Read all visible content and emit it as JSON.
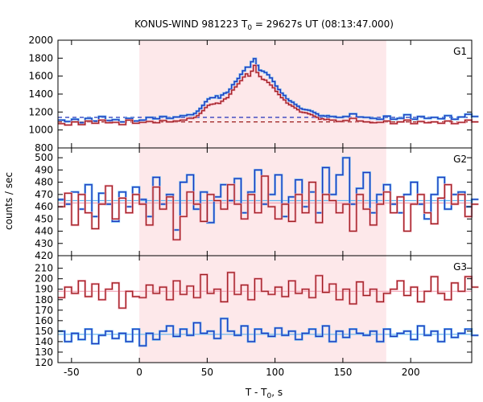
{
  "chart_data": {
    "type": "line",
    "title": {
      "prefix": "KONUS-WIND 981223 T",
      "sub": "0",
      "suffix": " = 29627s UT (08:13:47.000)"
    },
    "xlabel": {
      "prefix": "T - T",
      "sub": "0",
      "suffix": ", s"
    },
    "ylabel": "counts / sec",
    "xlim": [
      -60,
      245
    ],
    "xticks": [
      -50,
      0,
      50,
      100,
      150,
      200
    ],
    "shaded_interval": [
      0,
      182
    ],
    "shade_color": "#fde8ea",
    "colors": {
      "blue": "#2233bb",
      "red": "#9b1c1c",
      "light_blue": "#5fb4f0",
      "pink": "#f2a2b4"
    },
    "panels": [
      {
        "label": "G1",
        "ylim": [
          800,
          2000
        ],
        "yticks": [
          1000,
          1200,
          1400,
          1600,
          1800,
          2000
        ],
        "background_levels": [
          {
            "series": "blue",
            "value": 1140
          },
          {
            "series": "red",
            "value": 1090
          }
        ],
        "series": [
          {
            "color": "blue",
            "outline": "light_blue",
            "x": [
              -60,
              -55,
              -50,
              -45,
              -40,
              -35,
              -30,
              -25,
              -20,
              -15,
              -10,
              -5,
              0,
              5,
              10,
              15,
              20,
              25,
              30,
              35,
              40,
              42,
              44,
              46,
              48,
              50,
              52,
              54,
              56,
              58,
              60,
              62,
              64,
              66,
              68,
              70,
              72,
              74,
              76,
              78,
              80,
              82,
              84,
              86,
              88,
              90,
              92,
              94,
              96,
              98,
              100,
              102,
              104,
              106,
              108,
              110,
              112,
              114,
              116,
              118,
              120,
              122,
              124,
              126,
              128,
              130,
              132,
              134,
              136,
              138,
              140,
              145,
              150,
              155,
              160,
              165,
              170,
              175,
              180,
              185,
              190,
              195,
              200,
              205,
              210,
              215,
              220,
              225,
              230,
              235,
              240,
              245
            ],
            "y": [
              1110,
              1095,
              1120,
              1080,
              1130,
              1100,
              1150,
              1105,
              1115,
              1090,
              1130,
              1100,
              1110,
              1140,
              1125,
              1150,
              1130,
              1145,
              1160,
              1170,
              1185,
              1210,
              1240,
              1275,
              1315,
              1345,
              1360,
              1360,
              1380,
              1355,
              1390,
              1410,
              1420,
              1455,
              1505,
              1540,
              1575,
              1620,
              1660,
              1700,
              1700,
              1760,
              1795,
              1720,
              1665,
              1655,
              1640,
              1615,
              1580,
              1540,
              1490,
              1450,
              1410,
              1385,
              1345,
              1325,
              1310,
              1285,
              1265,
              1240,
              1230,
              1225,
              1220,
              1210,
              1195,
              1180,
              1160,
              1160,
              1155,
              1160,
              1150,
              1140,
              1150,
              1180,
              1145,
              1140,
              1130,
              1120,
              1155,
              1120,
              1130,
              1170,
              1120,
              1150,
              1130,
              1140,
              1125,
              1160,
              1120,
              1145,
              1175,
              1150
            ]
          },
          {
            "color": "red",
            "outline": "pink",
            "x": [
              -60,
              -55,
              -50,
              -45,
              -40,
              -35,
              -30,
              -25,
              -20,
              -15,
              -10,
              -5,
              0,
              5,
              10,
              15,
              20,
              25,
              30,
              35,
              40,
              42,
              44,
              46,
              48,
              50,
              52,
              54,
              56,
              58,
              60,
              62,
              64,
              66,
              68,
              70,
              72,
              74,
              76,
              78,
              80,
              82,
              84,
              86,
              88,
              90,
              92,
              94,
              96,
              98,
              100,
              102,
              104,
              106,
              108,
              110,
              112,
              114,
              116,
              118,
              120,
              122,
              124,
              126,
              128,
              130,
              132,
              134,
              136,
              138,
              140,
              145,
              150,
              155,
              160,
              165,
              170,
              175,
              180,
              185,
              190,
              195,
              200,
              205,
              210,
              215,
              220,
              225,
              230,
              235,
              240,
              245
            ],
            "y": [
              1070,
              1055,
              1090,
              1060,
              1100,
              1075,
              1110,
              1080,
              1085,
              1060,
              1110,
              1075,
              1085,
              1095,
              1080,
              1105,
              1090,
              1100,
              1110,
              1130,
              1140,
              1160,
              1185,
              1215,
              1250,
              1275,
              1285,
              1290,
              1300,
              1295,
              1320,
              1345,
              1360,
              1400,
              1445,
              1480,
              1515,
              1550,
              1590,
              1625,
              1600,
              1655,
              1720,
              1640,
              1595,
              1565,
              1555,
              1530,
              1500,
              1470,
              1430,
              1395,
              1360,
              1335,
              1300,
              1280,
              1265,
              1245,
              1225,
              1200,
              1195,
              1190,
              1180,
              1170,
              1155,
              1140,
              1120,
              1125,
              1115,
              1120,
              1110,
              1095,
              1105,
              1130,
              1100,
              1090,
              1080,
              1085,
              1100,
              1070,
              1090,
              1110,
              1070,
              1095,
              1080,
              1090,
              1075,
              1100,
              1070,
              1085,
              1110,
              1090
            ]
          }
        ]
      },
      {
        "label": "G2",
        "ylim": [
          420,
          508
        ],
        "yticks": [
          420,
          430,
          440,
          450,
          460,
          470,
          480,
          490,
          500
        ],
        "background_levels": [
          {
            "series": "blue",
            "value": 465
          },
          {
            "series": "red",
            "value": 463
          }
        ],
        "series": [
          {
            "color": "blue",
            "outline": "light_blue",
            "x": [
              -60,
              -55,
              -50,
              -45,
              -40,
              -35,
              -30,
              -25,
              -20,
              -15,
              -10,
              -5,
              0,
              5,
              10,
              15,
              20,
              25,
              30,
              35,
              40,
              45,
              50,
              55,
              60,
              65,
              70,
              75,
              80,
              85,
              90,
              95,
              100,
              105,
              110,
              115,
              120,
              125,
              130,
              135,
              140,
              145,
              150,
              155,
              160,
              165,
              170,
              175,
              180,
              185,
              190,
              195,
              200,
              205,
              210,
              215,
              220,
              225,
              230,
              235,
              240,
              245
            ],
            "y": [
              466,
              462,
              472,
              458,
              478,
              452,
              471,
              462,
              448,
              472,
              460,
              476,
              466,
              452,
              484,
              462,
              470,
              441,
              480,
              486,
              458,
              472,
              447,
              468,
              478,
              465,
              483,
              455,
              472,
              490,
              462,
              470,
              486,
              452,
              468,
              482,
              460,
              472,
              455,
              492,
              470,
              486,
              500,
              462,
              475,
              488,
              455,
              470,
              478,
              462,
              455,
              470,
              480,
              462,
              450,
              470,
              484,
              458,
              470,
              472,
              460,
              466
            ]
          },
          {
            "color": "red",
            "outline": "pink",
            "x": [
              -60,
              -55,
              -50,
              -45,
              -40,
              -35,
              -30,
              -25,
              -20,
              -15,
              -10,
              -5,
              0,
              5,
              10,
              15,
              20,
              25,
              30,
              35,
              40,
              45,
              50,
              55,
              60,
              65,
              70,
              75,
              80,
              85,
              90,
              95,
              100,
              105,
              110,
              115,
              120,
              125,
              130,
              135,
              140,
              145,
              150,
              155,
              160,
              165,
              170,
              175,
              180,
              185,
              190,
              195,
              200,
              205,
              210,
              215,
              220,
              225,
              230,
              235,
              240,
              245
            ],
            "y": [
              460,
              471,
              445,
              470,
              455,
              442,
              462,
              477,
              450,
              467,
              455,
              470,
              462,
              445,
              476,
              458,
              468,
              433,
              452,
              472,
              462,
              448,
              470,
              465,
              458,
              478,
              462,
              450,
              470,
              455,
              485,
              460,
              450,
              462,
              448,
              470,
              455,
              480,
              447,
              470,
              465,
              455,
              462,
              440,
              470,
              458,
              445,
              462,
              472,
              455,
              468,
              440,
              462,
              470,
              455,
              446,
              467,
              478,
              462,
              470,
              452,
              462
            ]
          }
        ]
      },
      {
        "label": "G3",
        "ylim": [
          120,
          222
        ],
        "yticks": [
          120,
          130,
          140,
          150,
          160,
          170,
          180,
          190,
          200,
          210
        ],
        "background_levels": [
          {
            "series": "red",
            "value": 188
          },
          {
            "series": "blue",
            "value": 147
          }
        ],
        "series": [
          {
            "color": "red",
            "outline": "pink",
            "x": [
              -60,
              -55,
              -50,
              -45,
              -40,
              -35,
              -30,
              -25,
              -20,
              -15,
              -10,
              -5,
              0,
              5,
              10,
              15,
              20,
              25,
              30,
              35,
              40,
              45,
              50,
              55,
              60,
              65,
              70,
              75,
              80,
              85,
              90,
              95,
              100,
              105,
              110,
              115,
              120,
              125,
              130,
              135,
              140,
              145,
              150,
              155,
              160,
              165,
              170,
              175,
              180,
              185,
              190,
              195,
              200,
              205,
              210,
              215,
              220,
              225,
              230,
              235,
              240,
              245
            ],
            "y": [
              182,
              192,
              186,
              198,
              183,
              195,
              180,
              190,
              196,
              172,
              188,
              183,
              182,
              194,
              186,
              192,
              180,
              198,
              185,
              193,
              182,
              204,
              186,
              190,
              178,
              206,
              185,
              194,
              180,
              200,
              188,
              185,
              192,
              183,
              198,
              186,
              190,
              182,
              203,
              187,
              195,
              180,
              190,
              176,
              197,
              184,
              190,
              178,
              186,
              190,
              198,
              184,
              192,
              178,
              188,
              202,
              186,
              180,
              196,
              188,
              202,
              192
            ]
          },
          {
            "color": "blue",
            "outline": "light_blue",
            "x": [
              -60,
              -55,
              -50,
              -45,
              -40,
              -35,
              -30,
              -25,
              -20,
              -15,
              -10,
              -5,
              0,
              5,
              10,
              15,
              20,
              25,
              30,
              35,
              40,
              45,
              50,
              55,
              60,
              65,
              70,
              75,
              80,
              85,
              90,
              95,
              100,
              105,
              110,
              115,
              120,
              125,
              130,
              135,
              140,
              145,
              150,
              155,
              160,
              165,
              170,
              175,
              180,
              185,
              190,
              195,
              200,
              205,
              210,
              215,
              220,
              225,
              230,
              235,
              240,
              245
            ],
            "y": [
              150,
              140,
              148,
              142,
              152,
              138,
              146,
              150,
              143,
              148,
              140,
              152,
              136,
              148,
              142,
              150,
              155,
              145,
              152,
              146,
              158,
              148,
              150,
              143,
              162,
              150,
              146,
              155,
              140,
              152,
              148,
              145,
              153,
              146,
              150,
              142,
              148,
              152,
              145,
              155,
              140,
              150,
              144,
              152,
              148,
              146,
              150,
              140,
              152,
              145,
              148,
              150,
              142,
              155,
              146,
              150,
              140,
              152,
              144,
              148,
              152,
              146
            ]
          }
        ]
      }
    ]
  }
}
